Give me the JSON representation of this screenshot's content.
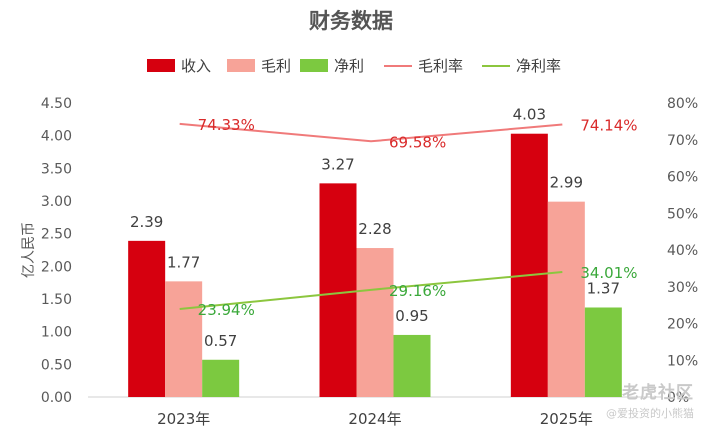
{
  "chart_data": {
    "type": "bar",
    "title": "财务数据",
    "ylabel": "亿人民币",
    "ylim": [
      0,
      4.5
    ],
    "y2lim": [
      0,
      80
    ],
    "yticks": [
      "0.00",
      "0.50",
      "1.00",
      "1.50",
      "2.00",
      "2.50",
      "3.00",
      "3.50",
      "4.00",
      "4.50"
    ],
    "y2ticks": [
      "0%",
      "10%",
      "20%",
      "30%",
      "40%",
      "50%",
      "60%",
      "70%",
      "80%"
    ],
    "categories": [
      "2023年",
      "2024年",
      "2025年"
    ],
    "legend_position": "top",
    "series": [
      {
        "name": "收入",
        "kind": "bar",
        "color": "#d6000f",
        "values": [
          2.39,
          3.27,
          4.03
        ],
        "labels": [
          "2.39",
          "3.27",
          "4.03"
        ]
      },
      {
        "name": "毛利",
        "kind": "bar",
        "color": "#f7a398",
        "values": [
          1.77,
          2.28,
          2.99
        ],
        "labels": [
          "1.77",
          "2.28",
          "2.99"
        ]
      },
      {
        "name": "净利",
        "kind": "bar",
        "color": "#7cc940",
        "values": [
          0.57,
          0.95,
          1.37
        ],
        "labels": [
          "0.57",
          "0.95",
          "1.37"
        ]
      },
      {
        "name": "毛利率",
        "kind": "line",
        "color": "#f07a7a",
        "label_color": "#d92a2a",
        "values": [
          74.33,
          69.58,
          74.14
        ],
        "labels": [
          "74.33%",
          "69.58%",
          "74.14%"
        ]
      },
      {
        "name": "净利率",
        "kind": "line",
        "color": "#8cc63e",
        "label_color": "#3aa83a",
        "values": [
          23.94,
          29.16,
          34.01
        ],
        "labels": [
          "23.94%",
          "29.16%",
          "34.01%"
        ]
      }
    ]
  },
  "watermark": {
    "brand": "老虎社区",
    "author": "@爱投资的小熊猫"
  }
}
